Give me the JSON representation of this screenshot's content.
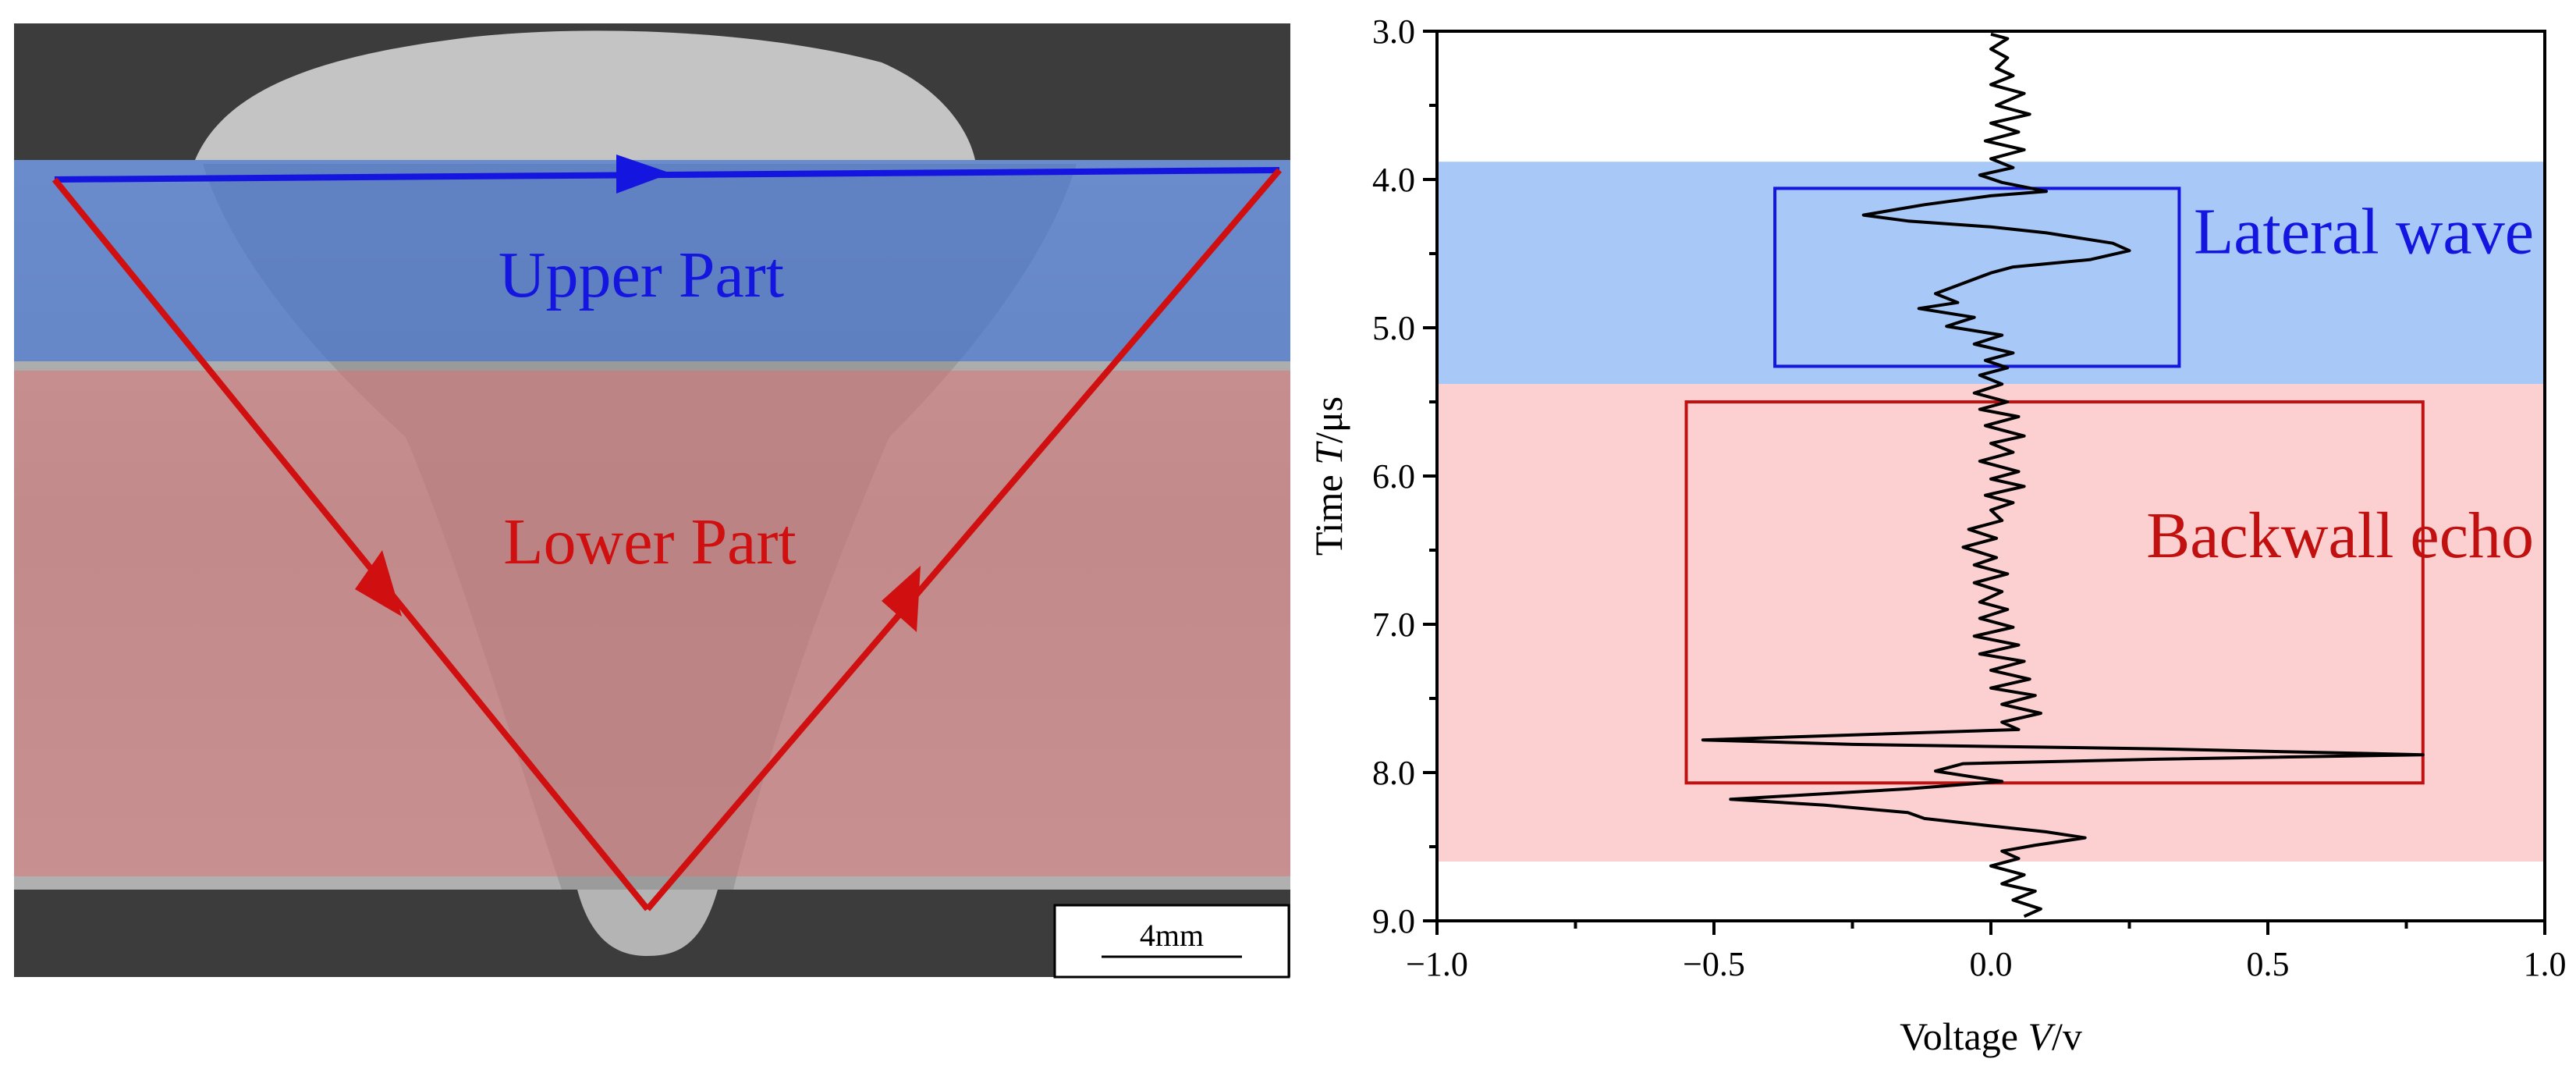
{
  "micrograph": {
    "upper_label": "Upper Part",
    "lower_label": "Lower Part",
    "scale_bar_label": "4mm",
    "colors": {
      "upper": "#1515e0",
      "lower": "#d01010",
      "upper_overlay": "#3a6fd8",
      "lower_overlay": "#e07070"
    }
  },
  "chart_data": {
    "type": "line",
    "orientation": "vertical",
    "xlabel_prefix": "Voltage ",
    "xlabel_var": "V",
    "xlabel_unit": "/v",
    "ylabel_prefix": "Time ",
    "ylabel_var": "T",
    "ylabel_unit": "/μs",
    "xlim": [
      -1.0,
      1.0
    ],
    "ylim": [
      3.0,
      9.0
    ],
    "y_inverted": true,
    "x_ticks": [
      -1.0,
      -0.5,
      0.0,
      0.5,
      1.0
    ],
    "x_tick_labels": [
      "−1.0",
      "−0.5",
      "0.0",
      "0.5",
      "1.0"
    ],
    "y_ticks": [
      3.0,
      4.0,
      5.0,
      6.0,
      7.0,
      8.0,
      9.0
    ],
    "y_tick_labels": [
      "3.0",
      "4.0",
      "5.0",
      "6.0",
      "7.0",
      "8.0",
      "9.0"
    ],
    "grid": false,
    "bands": [
      {
        "y0": 3.88,
        "y1": 5.38,
        "color": "#a8c8f8"
      },
      {
        "y0": 5.38,
        "y1": 8.6,
        "color": "#fcd0d0"
      }
    ],
    "annotations": [
      {
        "text": "Lateral wave",
        "color": "#1515e0",
        "box": {
          "x0": -0.39,
          "x1": 0.34,
          "y0": 4.06,
          "y1": 5.26
        }
      },
      {
        "text": "Backwall echo",
        "color": "#c01010",
        "box": {
          "x0": -0.55,
          "x1": 0.78,
          "y0": 5.5,
          "y1": 8.07
        }
      }
    ],
    "series": [
      {
        "color": "#000000",
        "points": [
          [
            0.0,
            3.02
          ],
          [
            0.03,
            3.05
          ],
          [
            0.0,
            3.12
          ],
          [
            0.03,
            3.18
          ],
          [
            0.01,
            3.25
          ],
          [
            0.04,
            3.3
          ],
          [
            0.0,
            3.36
          ],
          [
            0.06,
            3.42
          ],
          [
            0.01,
            3.5
          ],
          [
            0.07,
            3.56
          ],
          [
            0.0,
            3.62
          ],
          [
            0.05,
            3.68
          ],
          [
            -0.01,
            3.74
          ],
          [
            0.06,
            3.8
          ],
          [
            0.0,
            3.86
          ],
          [
            0.04,
            3.92
          ],
          [
            -0.02,
            3.97
          ],
          [
            0.02,
            4.02
          ],
          [
            0.1,
            4.08
          ],
          [
            0.0,
            4.11
          ],
          [
            -0.12,
            4.17
          ],
          [
            -0.23,
            4.24
          ],
          [
            -0.15,
            4.28
          ],
          [
            0.0,
            4.32
          ],
          [
            0.1,
            4.36
          ],
          [
            0.22,
            4.43
          ],
          [
            0.25,
            4.48
          ],
          [
            0.18,
            4.54
          ],
          [
            0.04,
            4.59
          ],
          [
            0.0,
            4.63
          ],
          [
            -0.05,
            4.7
          ],
          [
            -0.1,
            4.77
          ],
          [
            -0.06,
            4.83
          ],
          [
            -0.13,
            4.87
          ],
          [
            -0.03,
            4.93
          ],
          [
            -0.08,
            4.99
          ],
          [
            0.02,
            5.05
          ],
          [
            -0.03,
            5.11
          ],
          [
            0.04,
            5.17
          ],
          [
            -0.01,
            5.22
          ],
          [
            0.03,
            5.27
          ],
          [
            -0.02,
            5.32
          ],
          [
            0.02,
            5.38
          ],
          [
            -0.03,
            5.44
          ],
          [
            0.03,
            5.5
          ],
          [
            -0.02,
            5.55
          ],
          [
            0.05,
            5.6
          ],
          [
            -0.01,
            5.66
          ],
          [
            0.06,
            5.73
          ],
          [
            0.0,
            5.78
          ],
          [
            0.04,
            5.84
          ],
          [
            -0.02,
            5.9
          ],
          [
            0.05,
            5.97
          ],
          [
            0.0,
            6.02
          ],
          [
            0.06,
            6.07
          ],
          [
            -0.01,
            6.13
          ],
          [
            0.04,
            6.18
          ],
          [
            0.0,
            6.23
          ],
          [
            0.02,
            6.3
          ],
          [
            -0.04,
            6.36
          ],
          [
            0.01,
            6.42
          ],
          [
            -0.05,
            6.48
          ],
          [
            0.01,
            6.55
          ],
          [
            -0.03,
            6.6
          ],
          [
            0.03,
            6.66
          ],
          [
            -0.03,
            6.72
          ],
          [
            0.02,
            6.78
          ],
          [
            -0.02,
            6.85
          ],
          [
            0.03,
            6.9
          ],
          [
            -0.02,
            6.96
          ],
          [
            0.04,
            7.02
          ],
          [
            -0.03,
            7.08
          ],
          [
            0.05,
            7.14
          ],
          [
            -0.02,
            7.2
          ],
          [
            0.06,
            7.25
          ],
          [
            0.0,
            7.31
          ],
          [
            0.07,
            7.37
          ],
          [
            0.0,
            7.43
          ],
          [
            0.08,
            7.48
          ],
          [
            0.02,
            7.54
          ],
          [
            0.09,
            7.6
          ],
          [
            0.02,
            7.66
          ],
          [
            0.05,
            7.71
          ],
          [
            -0.2,
            7.74
          ],
          [
            -0.52,
            7.78
          ],
          [
            -0.25,
            7.81
          ],
          [
            0.3,
            7.84
          ],
          [
            0.78,
            7.88
          ],
          [
            0.3,
            7.91
          ],
          [
            -0.05,
            7.94
          ],
          [
            -0.1,
            7.99
          ],
          [
            0.02,
            8.06
          ],
          [
            -0.15,
            8.11
          ],
          [
            -0.47,
            8.18
          ],
          [
            -0.3,
            8.22
          ],
          [
            -0.15,
            8.27
          ],
          [
            -0.12,
            8.31
          ],
          [
            0.0,
            8.36
          ],
          [
            0.1,
            8.4
          ],
          [
            0.17,
            8.44
          ],
          [
            0.08,
            8.49
          ],
          [
            0.02,
            8.53
          ],
          [
            0.05,
            8.58
          ],
          [
            0.0,
            8.63
          ],
          [
            0.06,
            8.69
          ],
          [
            0.02,
            8.75
          ],
          [
            0.08,
            8.8
          ],
          [
            0.04,
            8.86
          ],
          [
            0.09,
            8.92
          ],
          [
            0.06,
            8.97
          ]
        ]
      }
    ]
  }
}
